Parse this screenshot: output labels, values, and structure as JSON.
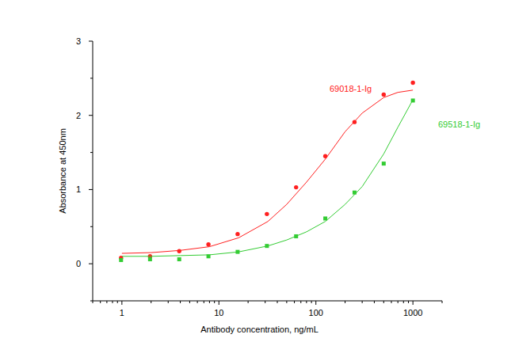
{
  "chart_data": {
    "type": "scatter",
    "x_label": "Antibody concentration, ng/mL",
    "y_label": "Absorbance at 450nm",
    "log": "x",
    "grid": false,
    "xlim": [
      0.5,
      2000
    ],
    "xticks": [
      1,
      10,
      100,
      1000
    ],
    "ylim": [
      -0.5,
      3
    ],
    "yticks": [
      0,
      1,
      2,
      3
    ],
    "x": [
      0.98,
      1.95,
      3.9,
      7.8,
      15.6,
      31.25,
      62.5,
      125,
      250,
      500,
      1000
    ],
    "series": [
      {
        "name": "69018-1-Ig",
        "color": "#ff2020",
        "type": "scatter",
        "marker": "circle",
        "values": [
          0.08,
          0.1,
          0.17,
          0.26,
          0.4,
          0.67,
          1.03,
          1.45,
          1.91,
          2.28,
          2.44
        ]
      },
      {
        "name": "69518-1-Ig",
        "color": "#33cc33",
        "type": "scatter",
        "marker": "square",
        "values": [
          0.05,
          0.06,
          0.06,
          0.1,
          0.16,
          0.24,
          0.37,
          0.61,
          0.96,
          1.35,
          2.2
        ]
      },
      {
        "color": "#ff2020",
        "type": "line",
        "line_style": "solid",
        "x": [
          1,
          2,
          4,
          8,
          16,
          32,
          50,
          80,
          125,
          200,
          300,
          500,
          700,
          1000
        ],
        "values": [
          0.14,
          0.15,
          0.18,
          0.23,
          0.35,
          0.57,
          0.8,
          1.1,
          1.41,
          1.78,
          2.03,
          2.24,
          2.31,
          2.34
        ]
      },
      {
        "color": "#33cc33",
        "type": "line",
        "line_style": "solid",
        "x": [
          1,
          2,
          4,
          8,
          16,
          32,
          50,
          80,
          125,
          200,
          300,
          500,
          700,
          1000
        ],
        "values": [
          0.1,
          0.1,
          0.11,
          0.12,
          0.16,
          0.24,
          0.32,
          0.43,
          0.57,
          0.8,
          1.04,
          1.48,
          1.84,
          2.21
        ]
      }
    ]
  }
}
